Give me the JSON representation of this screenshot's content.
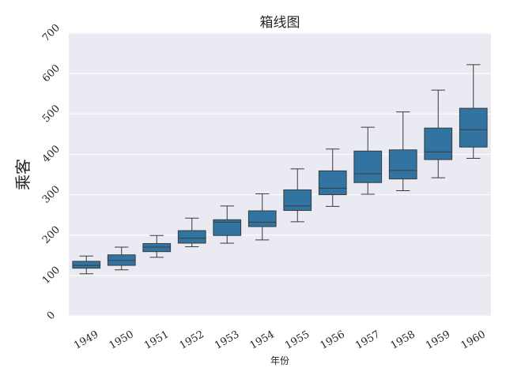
{
  "chart_data": {
    "type": "box",
    "title": "箱线图",
    "xlabel": "年份",
    "ylabel": "乘客",
    "ylim": [
      0,
      700
    ],
    "yticks": [
      0,
      100,
      200,
      300,
      400,
      500,
      600,
      700
    ],
    "grid": true,
    "colors": {
      "background": "#eaeaf2",
      "box": "#3274a1",
      "grid": "#ffffff",
      "line": "#3a3a3a"
    },
    "categories": [
      "1949",
      "1950",
      "1951",
      "1952",
      "1953",
      "1954",
      "1955",
      "1956",
      "1957",
      "1958",
      "1959",
      "1960"
    ],
    "boxes": [
      {
        "year": "1949",
        "min": 104,
        "q1": 118,
        "median": 125,
        "q3": 135,
        "max": 148
      },
      {
        "year": "1950",
        "min": 114,
        "q1": 125,
        "median": 137,
        "q3": 151,
        "max": 170
      },
      {
        "year": "1951",
        "min": 145,
        "q1": 159,
        "median": 170,
        "q3": 179,
        "max": 199
      },
      {
        "year": "1952",
        "min": 171,
        "q1": 180,
        "median": 192,
        "q3": 211,
        "max": 242
      },
      {
        "year": "1953",
        "min": 180,
        "q1": 199,
        "median": 232,
        "q3": 238,
        "max": 272
      },
      {
        "year": "1954",
        "min": 188,
        "q1": 221,
        "median": 232,
        "q3": 260,
        "max": 302
      },
      {
        "year": "1955",
        "min": 233,
        "q1": 261,
        "median": 272,
        "q3": 312,
        "max": 364
      },
      {
        "year": "1956",
        "min": 271,
        "q1": 300,
        "median": 316,
        "q3": 359,
        "max": 413
      },
      {
        "year": "1957",
        "min": 301,
        "q1": 330,
        "median": 352,
        "q3": 408,
        "max": 467
      },
      {
        "year": "1958",
        "min": 310,
        "q1": 339,
        "median": 360,
        "q3": 411,
        "max": 505
      },
      {
        "year": "1959",
        "min": 342,
        "q1": 387,
        "median": 406,
        "q3": 465,
        "max": 559
      },
      {
        "year": "1960",
        "min": 390,
        "q1": 418,
        "median": 461,
        "q3": 514,
        "max": 622
      }
    ]
  }
}
